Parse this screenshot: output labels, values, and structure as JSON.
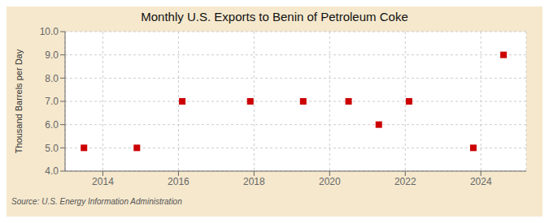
{
  "chart_data": {
    "type": "scatter",
    "title": "Monthly U.S. Exports to Benin of Petroleum Coke",
    "y_label": "Thousand Barrels per Day",
    "source": "Source: U.S. Energy Information Administration",
    "x": [
      2013.5,
      2014.9,
      2016.1,
      2017.9,
      2019.3,
      2020.5,
      2021.3,
      2022.1,
      2023.8,
      2024.6
    ],
    "values": [
      5,
      5,
      7,
      7,
      7,
      7,
      6,
      7,
      5,
      9
    ],
    "color": "#cc0000",
    "marker": "square",
    "grid": true,
    "xlim": [
      2013.0,
      2025.2
    ],
    "ylim": [
      4.0,
      10.0
    ],
    "xticks": [
      2014,
      2016,
      2018,
      2020,
      2022,
      2024
    ],
    "yticks": [
      {
        "value": 4,
        "label": "4.0"
      },
      {
        "value": 5,
        "label": "5.0"
      },
      {
        "value": 6,
        "label": "6.0"
      },
      {
        "value": 7,
        "label": "7.0"
      },
      {
        "value": 8,
        "label": "8.0"
      },
      {
        "value": 9,
        "label": "9.0"
      },
      {
        "value": 10,
        "label": "10.0"
      }
    ]
  }
}
